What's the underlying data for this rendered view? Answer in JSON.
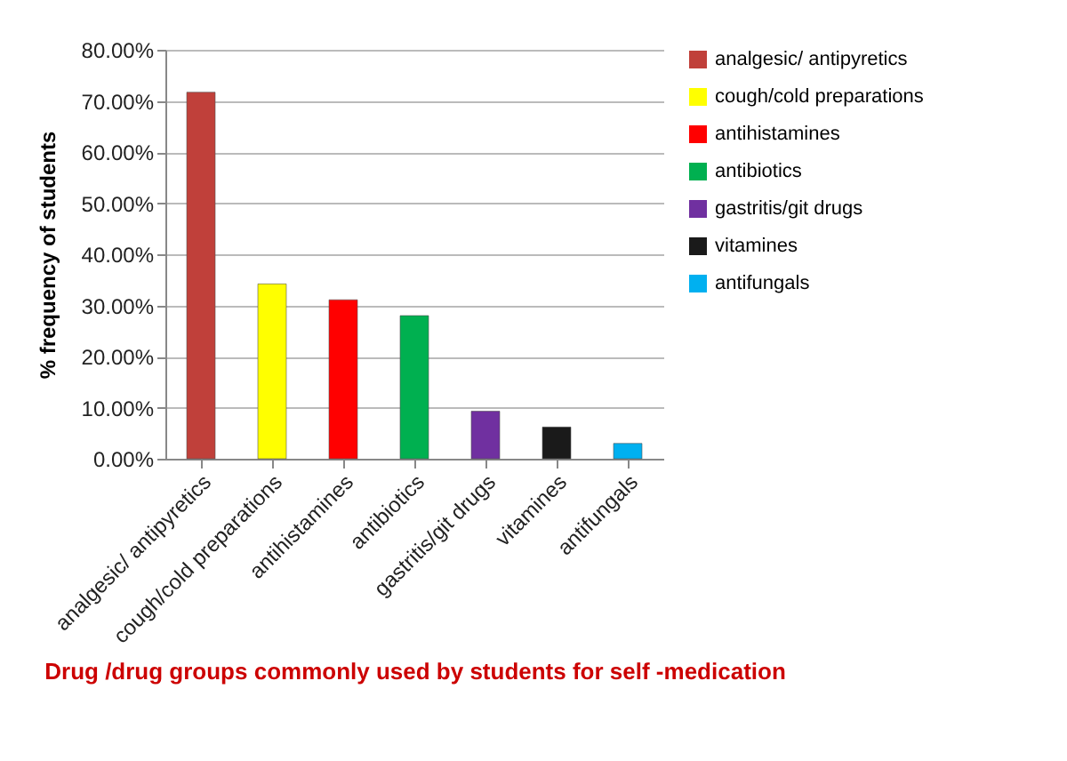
{
  "chart_data": {
    "type": "bar",
    "xlabel": "Drug /drug groups commonly used by students for self -medication",
    "ylabel": "% frequency of students",
    "categories": [
      "analgesic/ antipyretics",
      "cough/cold preparations",
      "antihistamines",
      "antibiotics",
      "gastritis/git drugs",
      "vitamines",
      "antifungals"
    ],
    "series": [
      {
        "name": "analgesic/ antipyretics",
        "color": "#c0403a",
        "values": [
          71.7,
          null,
          null,
          null,
          null,
          null,
          null
        ]
      },
      {
        "name": "cough/cold preparations",
        "color": "#ffff00",
        "values": [
          null,
          34.2,
          null,
          null,
          null,
          null,
          null
        ]
      },
      {
        "name": "antihistamines",
        "color": "#ff0000",
        "values": [
          null,
          null,
          31.1,
          null,
          null,
          null,
          null
        ]
      },
      {
        "name": "antibiotics",
        "color": "#00b050",
        "values": [
          null,
          null,
          null,
          28.0,
          null,
          null,
          null
        ]
      },
      {
        "name": "gastritis/git drugs",
        "color": "#7030a0",
        "values": [
          null,
          null,
          null,
          null,
          9.3,
          null,
          null
        ]
      },
      {
        "name": "vitamines",
        "color": "#1a1a1a",
        "values": [
          null,
          null,
          null,
          null,
          null,
          6.2,
          null
        ]
      },
      {
        "name": "antifungals",
        "color": "#00b0f0",
        "values": [
          null,
          null,
          null,
          null,
          null,
          null,
          3.0
        ]
      }
    ],
    "ylim": [
      0,
      80
    ],
    "yticks": [
      {
        "value": 0,
        "label": "0.00%"
      },
      {
        "value": 10,
        "label": "10.00%"
      },
      {
        "value": 20,
        "label": "20.00%"
      },
      {
        "value": 30,
        "label": "30.00%"
      },
      {
        "value": 40,
        "label": "40.00%"
      },
      {
        "value": 50,
        "label": "50.00%"
      },
      {
        "value": 60,
        "label": "60.00%"
      },
      {
        "value": 70,
        "label": "70.00%"
      },
      {
        "value": 80,
        "label": "80.00%"
      }
    ],
    "grid": "y",
    "legend": "right"
  }
}
